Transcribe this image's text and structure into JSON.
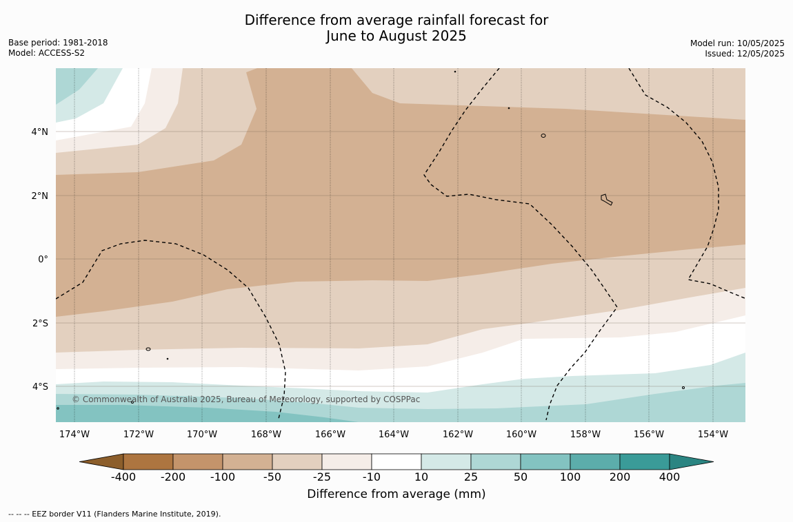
{
  "title": {
    "line1": "Difference from average rainfall forecast for",
    "line2": "June to August 2025"
  },
  "meta": {
    "base_period": "Base period: 1981-2018",
    "model": "Model: ACCESS-S2",
    "model_run": "Model run: 10/05/2025",
    "issued": "Issued: 12/05/2025"
  },
  "map": {
    "lon_labels": [
      "174°W",
      "172°W",
      "170°W",
      "168°W",
      "166°W",
      "164°W",
      "162°W",
      "160°W",
      "158°W",
      "156°W",
      "154°W"
    ],
    "lat_labels": [
      "4°N",
      "2°N",
      "0°",
      "2°S",
      "4°S"
    ],
    "copyright": "© Commonwealth of Australia 2025, Bureau of Meteorology, supported by COSPPac"
  },
  "colorbar": {
    "title": "Difference from average (mm)",
    "tick_labels": [
      "-400",
      "-200",
      "-100",
      "-50",
      "-25",
      "-10",
      "10",
      "25",
      "50",
      "100",
      "200",
      "400"
    ],
    "colors": [
      "#8c5e2b",
      "#ad7540",
      "#c4946b",
      "#d3b193",
      "#e3d0bf",
      "#f5ede8",
      "#ffffff",
      "#d4e9e7",
      "#aed7d5",
      "#83c3c1",
      "#5cadab",
      "#3a9b98",
      "#2b8582"
    ]
  },
  "footnote": "--  --  -- EEZ border V11 (Flanders Marine Institute, 2019)."
}
